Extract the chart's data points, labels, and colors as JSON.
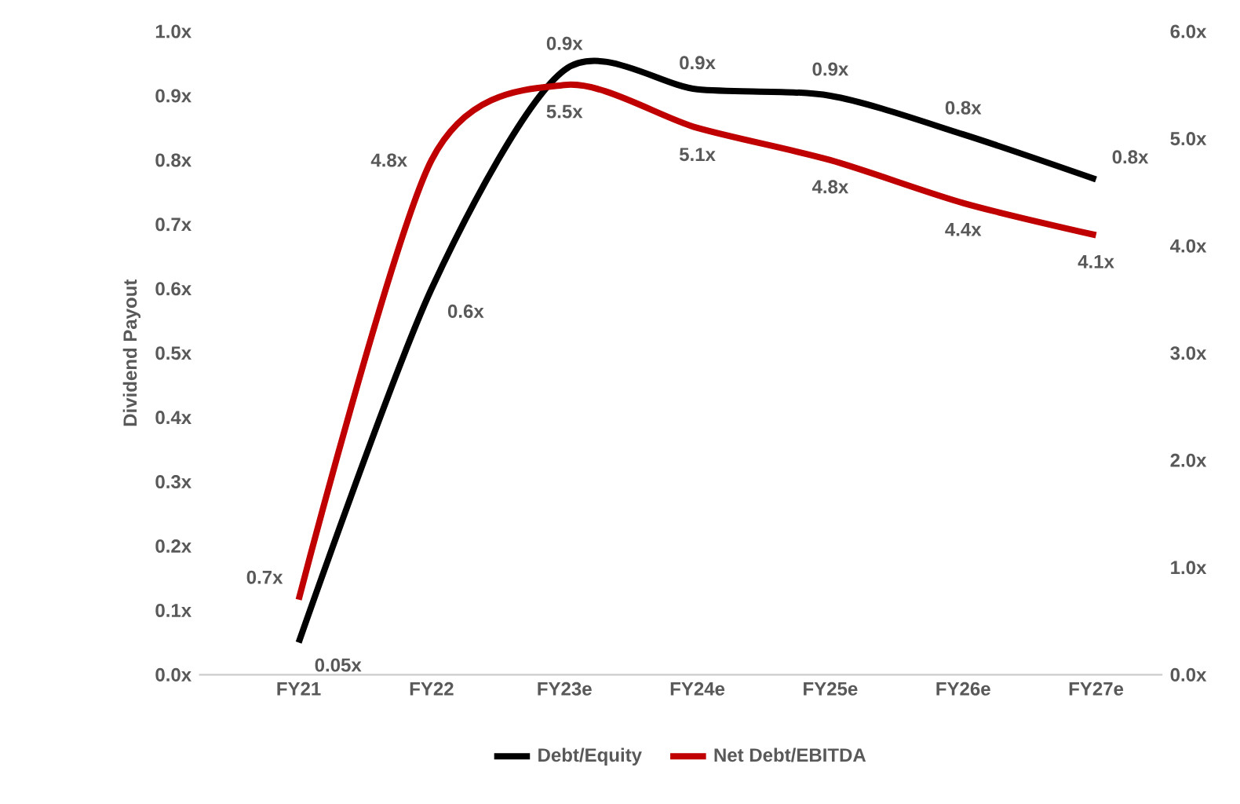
{
  "chart_data": {
    "type": "line",
    "ylabel": "Dividend Payout",
    "categories": [
      "FY21",
      "FY22",
      "FY23e",
      "FY24e",
      "FY25e",
      "FY26e",
      "FY27e"
    ],
    "series": [
      {
        "name": "Debt/Equity",
        "color": "#000000",
        "values": [
          0.05,
          0.6,
          0.94,
          0.91,
          0.9,
          0.84,
          0.77
        ],
        "value_labels": [
          "0.05x",
          "0.6x",
          "0.9x",
          "0.9x",
          "0.9x",
          "0.8x",
          "0.8x"
        ]
      },
      {
        "name": "Net Debt/EBITDA",
        "color": "#c00000",
        "axis": "y2",
        "values": [
          0.7,
          4.8,
          5.5,
          5.1,
          4.8,
          4.4,
          4.1
        ],
        "value_labels": [
          "0.7x",
          "4.8x",
          "5.5x",
          "5.1x",
          "4.8x",
          "4.4x",
          "4.1x"
        ]
      }
    ],
    "ylim": [
      0,
      1.0
    ],
    "yticks": [
      {
        "value": 0,
        "label": "0.0x"
      },
      {
        "value": 0.1,
        "label": "0.1x"
      },
      {
        "value": 0.2,
        "label": "0.2x"
      },
      {
        "value": 0.3,
        "label": "0.3x"
      },
      {
        "value": 0.4,
        "label": "0.4x"
      },
      {
        "value": 0.5,
        "label": "0.5x"
      },
      {
        "value": 0.6,
        "label": "0.6x"
      },
      {
        "value": 0.7,
        "label": "0.7x"
      },
      {
        "value": 0.8,
        "label": "0.8x"
      },
      {
        "value": 0.9,
        "label": "0.9x"
      },
      {
        "value": 1.0,
        "label": "1.0x"
      }
    ],
    "y2lim": [
      0,
      6.0
    ],
    "y2ticks": [
      {
        "value": 0,
        "label": "0.0x"
      },
      {
        "value": 1,
        "label": "1.0x"
      },
      {
        "value": 2,
        "label": "2.0x"
      },
      {
        "value": 3,
        "label": "3.0x"
      },
      {
        "value": 4,
        "label": "4.0x"
      },
      {
        "value": 5,
        "label": "5.0x"
      },
      {
        "value": 6,
        "label": "6.0x"
      }
    ],
    "legend": "bottom",
    "grid": false,
    "marker": "none",
    "line_style": "solid"
  }
}
